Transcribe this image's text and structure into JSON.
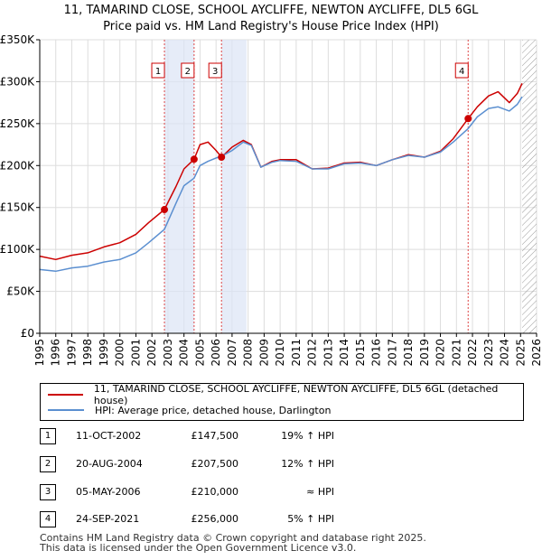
{
  "title_line1": "11, TAMARIND CLOSE, SCHOOL AYCLIFFE, NEWTON AYCLIFFE, DL5 6GL",
  "title_line2": "Price paid vs. HM Land Registry's House Price Index (HPI)",
  "chart_data": {
    "type": "line",
    "title": "11, TAMARIND CLOSE, SCHOOL AYCLIFFE, NEWTON AYCLIFFE, DL5 6GL — Price paid vs. HM Land Registry's House Price Index (HPI)",
    "xlim": [
      1995,
      2026
    ],
    "ylim": [
      0,
      350000
    ],
    "x_ticks": [
      1995,
      1996,
      1997,
      1998,
      1999,
      2000,
      2001,
      2002,
      2003,
      2004,
      2005,
      2006,
      2007,
      2008,
      2009,
      2010,
      2011,
      2012,
      2013,
      2014,
      2015,
      2016,
      2017,
      2018,
      2019,
      2020,
      2021,
      2022,
      2023,
      2024,
      2025,
      2026
    ],
    "y_ticks": [
      0,
      50000,
      100000,
      150000,
      200000,
      250000,
      300000,
      350000
    ],
    "y_tick_labels": [
      "£0",
      "£50K",
      "£100K",
      "£150K",
      "£200K",
      "£250K",
      "£300K",
      "£350K"
    ],
    "grid": true,
    "series": [
      {
        "name": "11, TAMARIND CLOSE, SCHOOL AYCLIFFE, NEWTON AYCLIFFE, DL5 6GL (detached house)",
        "color": "#cc0000",
        "x": [
          1995.0,
          1996.0,
          1997.0,
          1998.0,
          1999.0,
          2000.0,
          2001.0,
          2001.8,
          2002.78,
          2003.5,
          2004.0,
          2004.63,
          2005.0,
          2005.5,
          2006.0,
          2006.34,
          2007.0,
          2007.7,
          2008.2,
          2008.8,
          2009.5,
          2010.0,
          2011.0,
          2012.0,
          2013.0,
          2014.0,
          2015.0,
          2016.0,
          2017.0,
          2018.0,
          2019.0,
          2020.0,
          2020.8,
          2021.73,
          2022.3,
          2023.0,
          2023.6,
          2024.3,
          2024.8,
          2025.1
        ],
        "y": [
          92000,
          88000,
          93000,
          96000,
          103000,
          108000,
          118000,
          132000,
          147500,
          175000,
          196000,
          207500,
          225000,
          228000,
          218000,
          210000,
          222000,
          230000,
          225000,
          198000,
          205000,
          207000,
          207000,
          196000,
          197000,
          203000,
          204000,
          200000,
          207000,
          213000,
          210000,
          217000,
          232000,
          256000,
          270000,
          283000,
          288000,
          275000,
          286000,
          298000
        ]
      },
      {
        "name": "HPI: Average price, detached house, Darlington",
        "color": "#5b8fd0",
        "x": [
          1995.0,
          1996.0,
          1997.0,
          1998.0,
          1999.0,
          2000.0,
          2001.0,
          2001.8,
          2002.78,
          2003.5,
          2004.0,
          2004.63,
          2005.0,
          2005.5,
          2006.0,
          2006.34,
          2007.0,
          2007.7,
          2008.2,
          2008.8,
          2009.5,
          2010.0,
          2011.0,
          2012.0,
          2013.0,
          2014.0,
          2015.0,
          2016.0,
          2017.0,
          2018.0,
          2019.0,
          2020.0,
          2020.8,
          2021.73,
          2022.3,
          2023.0,
          2023.6,
          2024.3,
          2024.8,
          2025.1
        ],
        "y": [
          76000,
          74000,
          78000,
          80000,
          85000,
          88000,
          96000,
          108000,
          124000,
          155000,
          176000,
          185000,
          200000,
          205000,
          209000,
          211000,
          218000,
          228000,
          224000,
          198000,
          204000,
          206000,
          205000,
          196000,
          196000,
          202000,
          203000,
          200000,
          207000,
          212000,
          210000,
          216000,
          228000,
          244000,
          258000,
          268000,
          270000,
          265000,
          273000,
          282000
        ]
      }
    ],
    "sales": [
      {
        "label": "1",
        "x": 2002.78,
        "y": 147500
      },
      {
        "label": "2",
        "x": 2004.63,
        "y": 207500
      },
      {
        "label": "3",
        "x": 2006.34,
        "y": 210000
      },
      {
        "label": "4",
        "x": 2021.73,
        "y": 256000
      }
    ],
    "shaded_spans": [
      [
        2002.78,
        2004.63
      ],
      [
        2006.34,
        2007.9
      ]
    ],
    "hatched_from": 2025.1
  },
  "legend": {
    "series1": "11, TAMARIND CLOSE, SCHOOL AYCLIFFE, NEWTON AYCLIFFE, DL5 6GL (detached house)",
    "series2": "HPI: Average price, detached house, Darlington"
  },
  "transactions": [
    {
      "num": "1",
      "date": "11-OCT-2002",
      "price": "£147,500",
      "hpi": "19% ↑ HPI"
    },
    {
      "num": "2",
      "date": "20-AUG-2004",
      "price": "£207,500",
      "hpi": "12% ↑ HPI"
    },
    {
      "num": "3",
      "date": "05-MAY-2006",
      "price": "£210,000",
      "hpi": "≈ HPI"
    },
    {
      "num": "4",
      "date": "24-SEP-2021",
      "price": "£256,000",
      "hpi": "5% ↑ HPI"
    }
  ],
  "footer": {
    "line1": "Contains HM Land Registry data © Crown copyright and database right 2025.",
    "line2": "This data is licensed under the Open Government Licence v3.0."
  }
}
